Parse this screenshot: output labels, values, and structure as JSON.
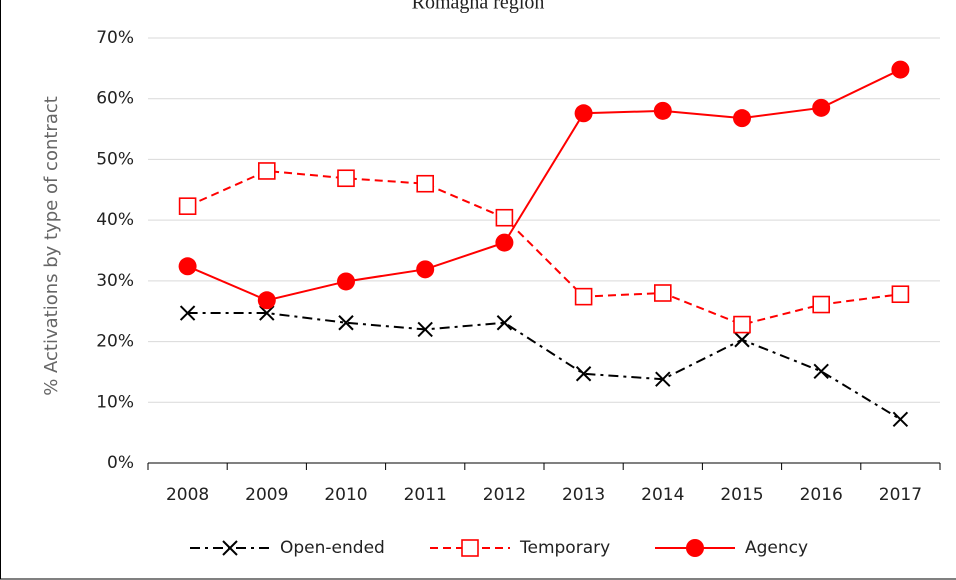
{
  "chart_data": {
    "type": "line",
    "title": "Romagna region",
    "y_label": "% Activations by type of contract",
    "categories": [
      "2008",
      "2009",
      "2010",
      "2011",
      "2012",
      "2013",
      "2014",
      "2015",
      "2016",
      "2017"
    ],
    "series": [
      {
        "name": "Open-ended",
        "color": "#000000",
        "line": "dashdot",
        "marker": "x",
        "values": [
          24.7,
          24.7,
          23.1,
          22.0,
          23.1,
          14.7,
          13.8,
          20.3,
          15.1,
          7.2
        ]
      },
      {
        "name": "Temporary",
        "color": "#ff0000",
        "line": "dashed",
        "marker": "square",
        "values": [
          42.3,
          48.1,
          46.9,
          46.0,
          40.4,
          27.4,
          28.0,
          22.8,
          26.1,
          27.8
        ]
      },
      {
        "name": "Agency",
        "color": "#ff0000",
        "line": "solid",
        "marker": "circle",
        "values": [
          32.4,
          26.8,
          29.9,
          31.9,
          36.3,
          57.6,
          58.0,
          56.8,
          58.5,
          64.8
        ]
      }
    ],
    "ylim": [
      0,
      70
    ],
    "yticks": [
      {
        "value": 0,
        "label": "0%"
      },
      {
        "value": 10,
        "label": "10%"
      },
      {
        "value": 20,
        "label": "20%"
      },
      {
        "value": 30,
        "label": "30%"
      },
      {
        "value": 40,
        "label": "40%"
      },
      {
        "value": 50,
        "label": "50%"
      },
      {
        "value": 60,
        "label": "60%"
      },
      {
        "value": 70,
        "label": "70%"
      }
    ],
    "grid": true,
    "legend": "bottom"
  }
}
